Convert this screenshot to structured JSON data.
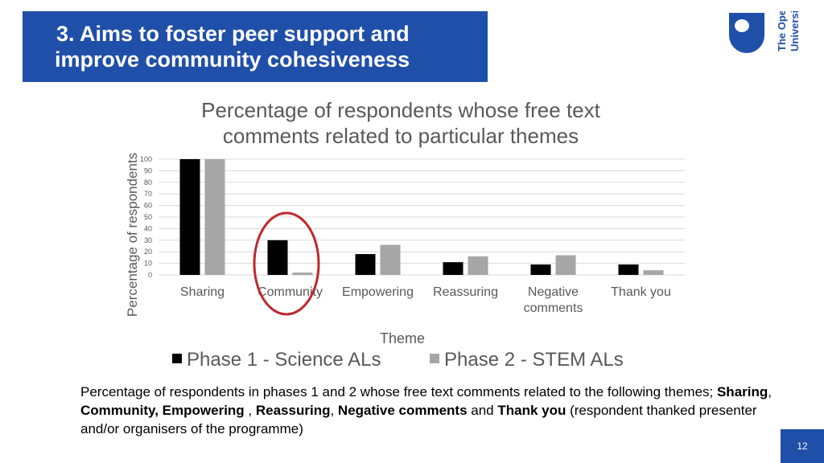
{
  "slide": {
    "title_line1": "3.  Aims to foster peer support and",
    "title_line2": "improve community cohesiveness",
    "logo_line1": "The Open",
    "logo_line2": "University",
    "page_number": "12",
    "colors": {
      "title_bg": "#1f4fa8",
      "phase1": "#000000",
      "phase2": "#a6a6a6",
      "highlight_circle": "#c0282d"
    }
  },
  "caption": {
    "part1": "Percentage of respondents in phases 1 and 2 whose free text comments related to the following themes; ",
    "t1": "Sharing",
    "sep1": ", ",
    "t2": "Community, Empowering",
    "sep2": " , ",
    "t3": "Reassuring",
    "sep3": ", ",
    "t4": "Negative comments",
    "sep4": "  and ",
    "t5": "Thank you",
    "part2": " (respondent thanked presenter and/or organisers of the programme)"
  },
  "chart_data": {
    "type": "bar",
    "title_line1": "Percentage of respondents whose free text",
    "title_line2": "comments related to particular themes",
    "xlabel": "Theme",
    "ylabel": "Percentage of respondents",
    "categories": [
      [
        "Sharing"
      ],
      [
        "Community"
      ],
      [
        "Empowering"
      ],
      [
        "Reassuring"
      ],
      [
        "Negative",
        "comments"
      ],
      [
        "Thank you"
      ]
    ],
    "series": [
      {
        "name": "Phase 1 - Science ALs",
        "color": "#000000",
        "values": [
          100,
          30,
          18,
          11,
          9,
          9
        ]
      },
      {
        "name": "Phase 2 - STEM ALs",
        "color": "#a6a6a6",
        "values": [
          100,
          2,
          26,
          16,
          17,
          4
        ]
      }
    ],
    "ylim": [
      0,
      100
    ],
    "yticks": [
      0,
      10,
      20,
      30,
      40,
      50,
      60,
      70,
      80,
      90,
      100
    ],
    "grid": true,
    "legend": "bottom",
    "highlighted_category": "Community"
  }
}
